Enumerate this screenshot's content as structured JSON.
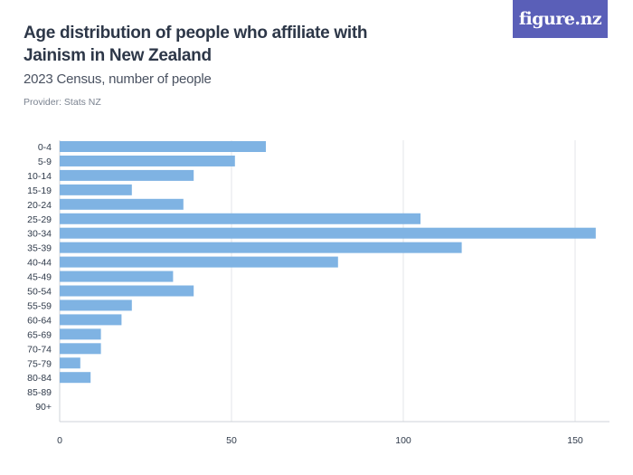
{
  "header": {
    "title": "Age distribution of people who affiliate with Jainism in New Zealand",
    "subtitle": "2023 Census, number of people",
    "provider": "Provider: Stats NZ",
    "logo_text": "figure.nz"
  },
  "colors": {
    "bar": "#7fb3e3",
    "grid": "#e3e5e8",
    "axis": "#cfd3d8",
    "logo_bg": "#5a5fb8"
  },
  "chart_data": {
    "type": "bar",
    "orientation": "horizontal",
    "title": "Age distribution of people who affiliate with Jainism in New Zealand",
    "subtitle": "2023 Census, number of people",
    "xlabel": "",
    "ylabel": "",
    "xlim": [
      0,
      160
    ],
    "xticks": [
      0,
      50,
      100,
      150
    ],
    "grid": true,
    "categories": [
      "0-4",
      "5-9",
      "10-14",
      "15-19",
      "20-24",
      "25-29",
      "30-34",
      "35-39",
      "40-44",
      "45-49",
      "50-54",
      "55-59",
      "60-64",
      "65-69",
      "70-74",
      "75-79",
      "80-84",
      "85-89",
      "90+"
    ],
    "values": [
      60,
      51,
      39,
      21,
      36,
      105,
      156,
      117,
      81,
      33,
      39,
      21,
      18,
      12,
      12,
      6,
      9,
      0,
      0
    ]
  }
}
